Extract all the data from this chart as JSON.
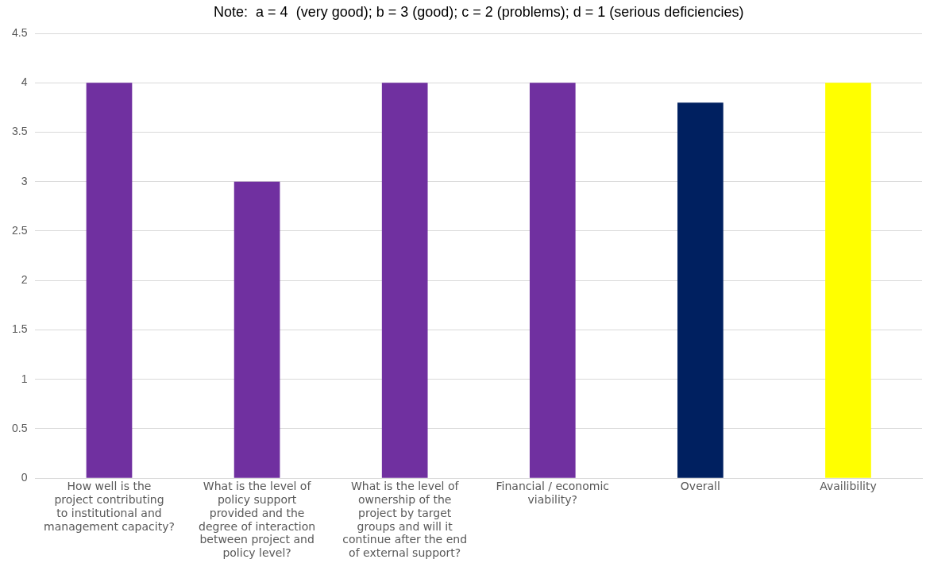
{
  "chart_data": {
    "type": "bar",
    "categories": [
      "How well is the project contributing to institutional and management capacity?",
      "What is the level of policy support provided and the degree of interaction between project and policy level?",
      "What is the level of ownership of the project by target groups and will it continue after the end of external support?",
      "Financial / economic viability?",
      "Overall",
      "Availibility"
    ],
    "values": [
      4,
      3,
      4,
      4,
      3.8,
      4
    ],
    "colors": [
      "#7030a0",
      "#7030a0",
      "#7030a0",
      "#7030a0",
      "#002060",
      "#ffff00"
    ],
    "ylim": [
      0,
      4.5
    ],
    "yticks": [
      0,
      0.5,
      1,
      1.5,
      2,
      2.5,
      3,
      3.5,
      4,
      4.5
    ],
    "grid": "y",
    "legend": false,
    "annotations": [
      "Note:  a = 4  (very good); b = 3 (good); c = 2 (problems); d = 1 (serious deficiencies)"
    ]
  }
}
